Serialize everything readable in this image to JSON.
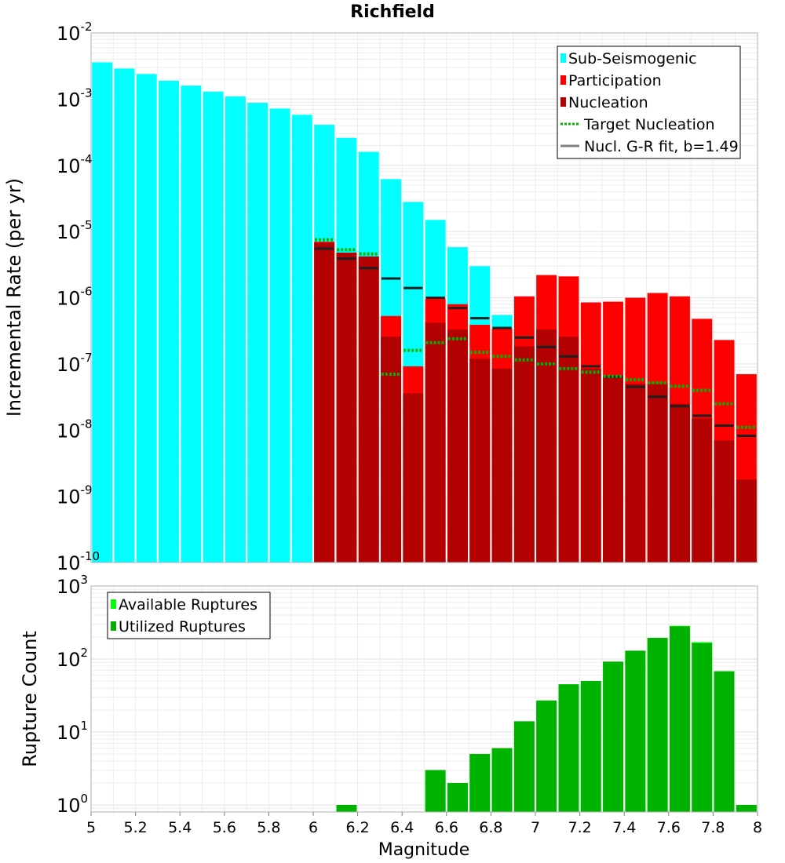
{
  "chart_data": [
    {
      "type": "bar",
      "title": "Richfield",
      "xlabel": "",
      "ylabel": "Incremental Rate (per yr)",
      "yscale": "log",
      "xlim": [
        5,
        8
      ],
      "ylim": [
        1e-10,
        0.01
      ],
      "bin_width": 0.1,
      "x": [
        5.05,
        5.15,
        5.25,
        5.35,
        5.45,
        5.55,
        5.65,
        5.75,
        5.85,
        5.95,
        6.05,
        6.15,
        6.25,
        6.35,
        6.45,
        6.55,
        6.65,
        6.75,
        6.85,
        6.95,
        7.05,
        7.15,
        7.25,
        7.35,
        7.45,
        7.55,
        7.65,
        7.75,
        7.85,
        7.95
      ],
      "y_tick_labels": [
        {
          "base": "10",
          "exp": "-2",
          "value": 0.01
        },
        {
          "base": "10",
          "exp": "-3",
          "value": 0.001
        },
        {
          "base": "10",
          "exp": "-4",
          "value": 0.0001
        },
        {
          "base": "10",
          "exp": "-5",
          "value": 1e-05
        },
        {
          "base": "10",
          "exp": "-6",
          "value": 1e-06
        },
        {
          "base": "10",
          "exp": "-7",
          "value": 1e-07
        },
        {
          "base": "10",
          "exp": "-8",
          "value": 1e-08
        },
        {
          "base": "10",
          "exp": "-9",
          "value": 1e-09
        },
        {
          "base": "10",
          "exp": "-10",
          "value": 1e-10
        }
      ],
      "legend_position": "top-right",
      "grid": true,
      "series": [
        {
          "name": "Sub-Seismogenic",
          "color": "#00ffff",
          "style": "bar",
          "values": [
            0.0036,
            0.0029,
            0.0024,
            0.0019,
            0.0016,
            0.0013,
            0.0011,
            0.00088,
            0.00072,
            0.00058,
            0.00041,
            0.00026,
            0.00016,
            6.2e-05,
            2.8e-05,
            1.5e-05,
            5.8e-06,
            3e-06,
            5.5e-07,
            null,
            null,
            null,
            null,
            null,
            null,
            null,
            null,
            null,
            null,
            null
          ]
        },
        {
          "name": "Participation",
          "color": "#ff0000",
          "style": "bar",
          "values": [
            null,
            null,
            null,
            null,
            null,
            null,
            null,
            null,
            null,
            null,
            7e-06,
            4.8e-06,
            4.2e-06,
            5.3e-07,
            9.2e-08,
            9.6e-07,
            8e-07,
            3.9e-07,
            3.4e-07,
            1.05e-06,
            2.2e-06,
            2.1e-06,
            8.5e-07,
            8.7e-07,
            1e-06,
            1.18e-06,
            1.05e-06,
            4.8e-07,
            2.3e-07,
            7e-08
          ]
        },
        {
          "name": "Nucleation",
          "color": "#b30000",
          "style": "bar",
          "values": [
            null,
            null,
            null,
            null,
            null,
            null,
            null,
            null,
            null,
            null,
            6.8e-06,
            4.8e-06,
            4.2e-06,
            2.6e-07,
            3.6e-08,
            4.2e-07,
            3.3e-07,
            1.2e-07,
            8.5e-08,
            1.85e-07,
            3.3e-07,
            2.6e-07,
            8.5e-08,
            6.5e-08,
            5e-08,
            5e-08,
            2.5e-08,
            1.5e-08,
            7e-09,
            1.8e-09
          ]
        },
        {
          "name": "Target Nucleation",
          "color": "#00b300",
          "style": "dotted-step",
          "values": [
            null,
            null,
            null,
            null,
            null,
            null,
            null,
            null,
            null,
            null,
            7.5e-06,
            5.3e-06,
            4.6e-06,
            7e-08,
            1.6e-07,
            2.1e-07,
            2.4e-07,
            1.5e-07,
            1.3e-07,
            1.15e-07,
            1e-07,
            8.5e-08,
            7.5e-08,
            6.5e-08,
            5.8e-08,
            5.2e-08,
            4.6e-08,
            4e-08,
            2.5e-08,
            1.1e-08
          ]
        },
        {
          "name": "Nucl. G-R fit, b=1.49",
          "color": "#808080",
          "style": "step",
          "values": [
            null,
            null,
            null,
            null,
            null,
            null,
            null,
            null,
            null,
            null,
            5.5e-06,
            3.9e-06,
            2.8e-06,
            1.95e-06,
            1.4e-06,
            1e-06,
            7e-07,
            4.9e-07,
            3.5e-07,
            2.5e-07,
            1.8e-07,
            1.3e-07,
            9.2e-08,
            6.4e-08,
            4.5e-08,
            3.2e-08,
            2.3e-08,
            1.65e-08,
            1.17e-08,
            8.2e-09
          ]
        }
      ]
    },
    {
      "type": "bar",
      "title": "",
      "xlabel": "Magnitude",
      "ylabel": "Rupture Count",
      "yscale": "log",
      "xlim": [
        5,
        8
      ],
      "ylim": [
        0.8,
        1000
      ],
      "bin_width": 0.1,
      "x": [
        5.05,
        5.15,
        5.25,
        5.35,
        5.45,
        5.55,
        5.65,
        5.75,
        5.85,
        5.95,
        6.05,
        6.15,
        6.25,
        6.35,
        6.45,
        6.55,
        6.65,
        6.75,
        6.85,
        6.95,
        7.05,
        7.15,
        7.25,
        7.35,
        7.45,
        7.55,
        7.65,
        7.75,
        7.85,
        7.95
      ],
      "x_tick_labels": [
        "5",
        "5.2",
        "5.4",
        "5.6",
        "5.8",
        "6",
        "6.2",
        "6.4",
        "6.6",
        "6.8",
        "7",
        "7.2",
        "7.4",
        "7.6",
        "7.8",
        "8"
      ],
      "x_ticks": [
        5,
        5.2,
        5.4,
        5.6,
        5.8,
        6,
        6.2,
        6.4,
        6.6,
        6.8,
        7,
        7.2,
        7.4,
        7.6,
        7.8,
        8
      ],
      "y_tick_labels": [
        {
          "base": "10",
          "exp": "3",
          "value": 1000
        },
        {
          "base": "10",
          "exp": "2",
          "value": 100
        },
        {
          "base": "10",
          "exp": "1",
          "value": 10
        },
        {
          "base": "10",
          "exp": "0",
          "value": 1
        }
      ],
      "legend_position": "top-left",
      "grid": true,
      "series": [
        {
          "name": "Available Ruptures",
          "color": "#00ff00",
          "style": "bar",
          "values": [
            null,
            null,
            null,
            null,
            null,
            null,
            null,
            null,
            null,
            null,
            null,
            1,
            null,
            null,
            null,
            3,
            2,
            5,
            6,
            14,
            27,
            45,
            50,
            92,
            130,
            195,
            285,
            170,
            68,
            1
          ]
        },
        {
          "name": "Utilized Ruptures",
          "color": "#00b300",
          "style": "bar",
          "values": [
            null,
            null,
            null,
            null,
            null,
            null,
            null,
            null,
            null,
            null,
            null,
            1,
            null,
            null,
            null,
            3,
            2,
            5,
            6,
            14,
            27,
            45,
            50,
            92,
            130,
            195,
            280,
            165,
            68,
            1
          ]
        }
      ]
    }
  ]
}
